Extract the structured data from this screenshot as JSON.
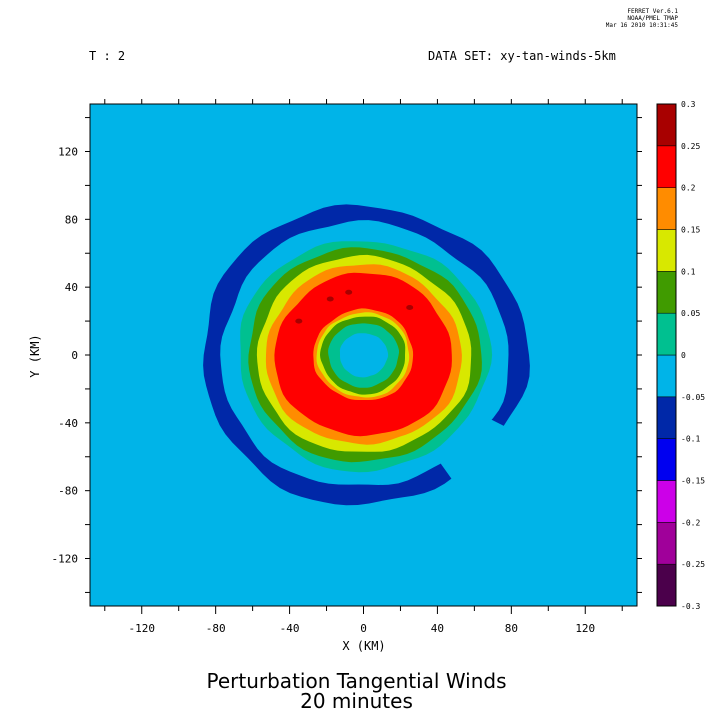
{
  "header": {
    "software": "FERRET  Ver.6.1",
    "lab": "NOAA/PMEL TMAP",
    "timestamp": "Mar 16 2010 10:31:45",
    "time_label": "T : 2",
    "dataset_label": "DATA SET: xy-tan-winds-5km"
  },
  "bottom_title": {
    "line1": "Perturbation Tangential Winds",
    "line2": "20 minutes"
  },
  "chart_data": {
    "type": "heatmap",
    "title": "Perturbation Tangential Winds",
    "subtitle": "20 minutes",
    "xlabel": "X (KM)",
    "ylabel": "Y (KM)",
    "xlim": [
      -148,
      148
    ],
    "ylim": [
      -148,
      148
    ],
    "x_ticks": [
      -120,
      -80,
      -40,
      0,
      40,
      80,
      120
    ],
    "y_ticks": [
      120,
      80,
      40,
      0,
      -40,
      -80,
      -120
    ],
    "grid": false,
    "colorbar": {
      "levels": [
        "-0.3",
        "-0.25",
        "-0.2",
        "-0.15",
        "-0.1",
        "-0.05",
        "0",
        "0.05",
        "0.1",
        "0.15",
        "0.2",
        "0.25",
        "0.3"
      ],
      "colors": [
        "#4b004b",
        "#a0009a",
        "#cc00e8",
        "#0000f0",
        "#0028a8",
        "#00b4e8",
        "#00c090",
        "#409b00",
        "#d8e800",
        "#ff8c00",
        "#ff0000",
        "#a80000"
      ]
    },
    "field_bands": [
      {
        "value_range": [
          -0.1,
          -0.05
        ],
        "color": "#0028a8",
        "shape": "annulus",
        "inner_radius_km": 78,
        "outer_radius_km": 88,
        "note": "open to the southeast"
      },
      {
        "value_range": [
          0,
          0.05
        ],
        "color": "#00c090",
        "shape": "disk",
        "radius_km": 68
      },
      {
        "value_range": [
          0.05,
          0.1
        ],
        "color": "#409b00",
        "shape": "disk",
        "radius_km": 63
      },
      {
        "value_range": [
          0.1,
          0.15
        ],
        "color": "#d8e800",
        "shape": "disk",
        "radius_km": 58
      },
      {
        "value_range": [
          0.15,
          0.2
        ],
        "color": "#ff8c00",
        "shape": "disk",
        "radius_km": 53
      },
      {
        "value_range": [
          0.2,
          0.25
        ],
        "color": "#ff0000",
        "shape": "disk",
        "radius_km": 48
      },
      {
        "value_range": [
          0.2,
          0.15
        ],
        "color": "#ff8c00",
        "shape": "disk",
        "radius_km": 27
      },
      {
        "value_range": [
          0.15,
          0.1
        ],
        "color": "#d8e800",
        "shape": "disk",
        "radius_km": 25
      },
      {
        "value_range": [
          0.1,
          0.05
        ],
        "color": "#409b00",
        "shape": "disk",
        "radius_km": 23
      },
      {
        "value_range": [
          0.05,
          0
        ],
        "color": "#00c090",
        "shape": "disk",
        "radius_km": 19
      },
      {
        "value_range": [
          0,
          -0.05
        ],
        "color": "#00b4e8",
        "shape": "disk",
        "radius_km": 13
      }
    ],
    "extrema_spots": [
      {
        "x": -35,
        "y": 20,
        "value_range": [
          0.25,
          0.3
        ]
      },
      {
        "x": -18,
        "y": 33,
        "value_range": [
          0.25,
          0.3
        ]
      },
      {
        "x": -8,
        "y": 37,
        "value_range": [
          0.25,
          0.3
        ]
      },
      {
        "x": 25,
        "y": 28,
        "value_range": [
          0.25,
          0.3
        ]
      }
    ]
  }
}
